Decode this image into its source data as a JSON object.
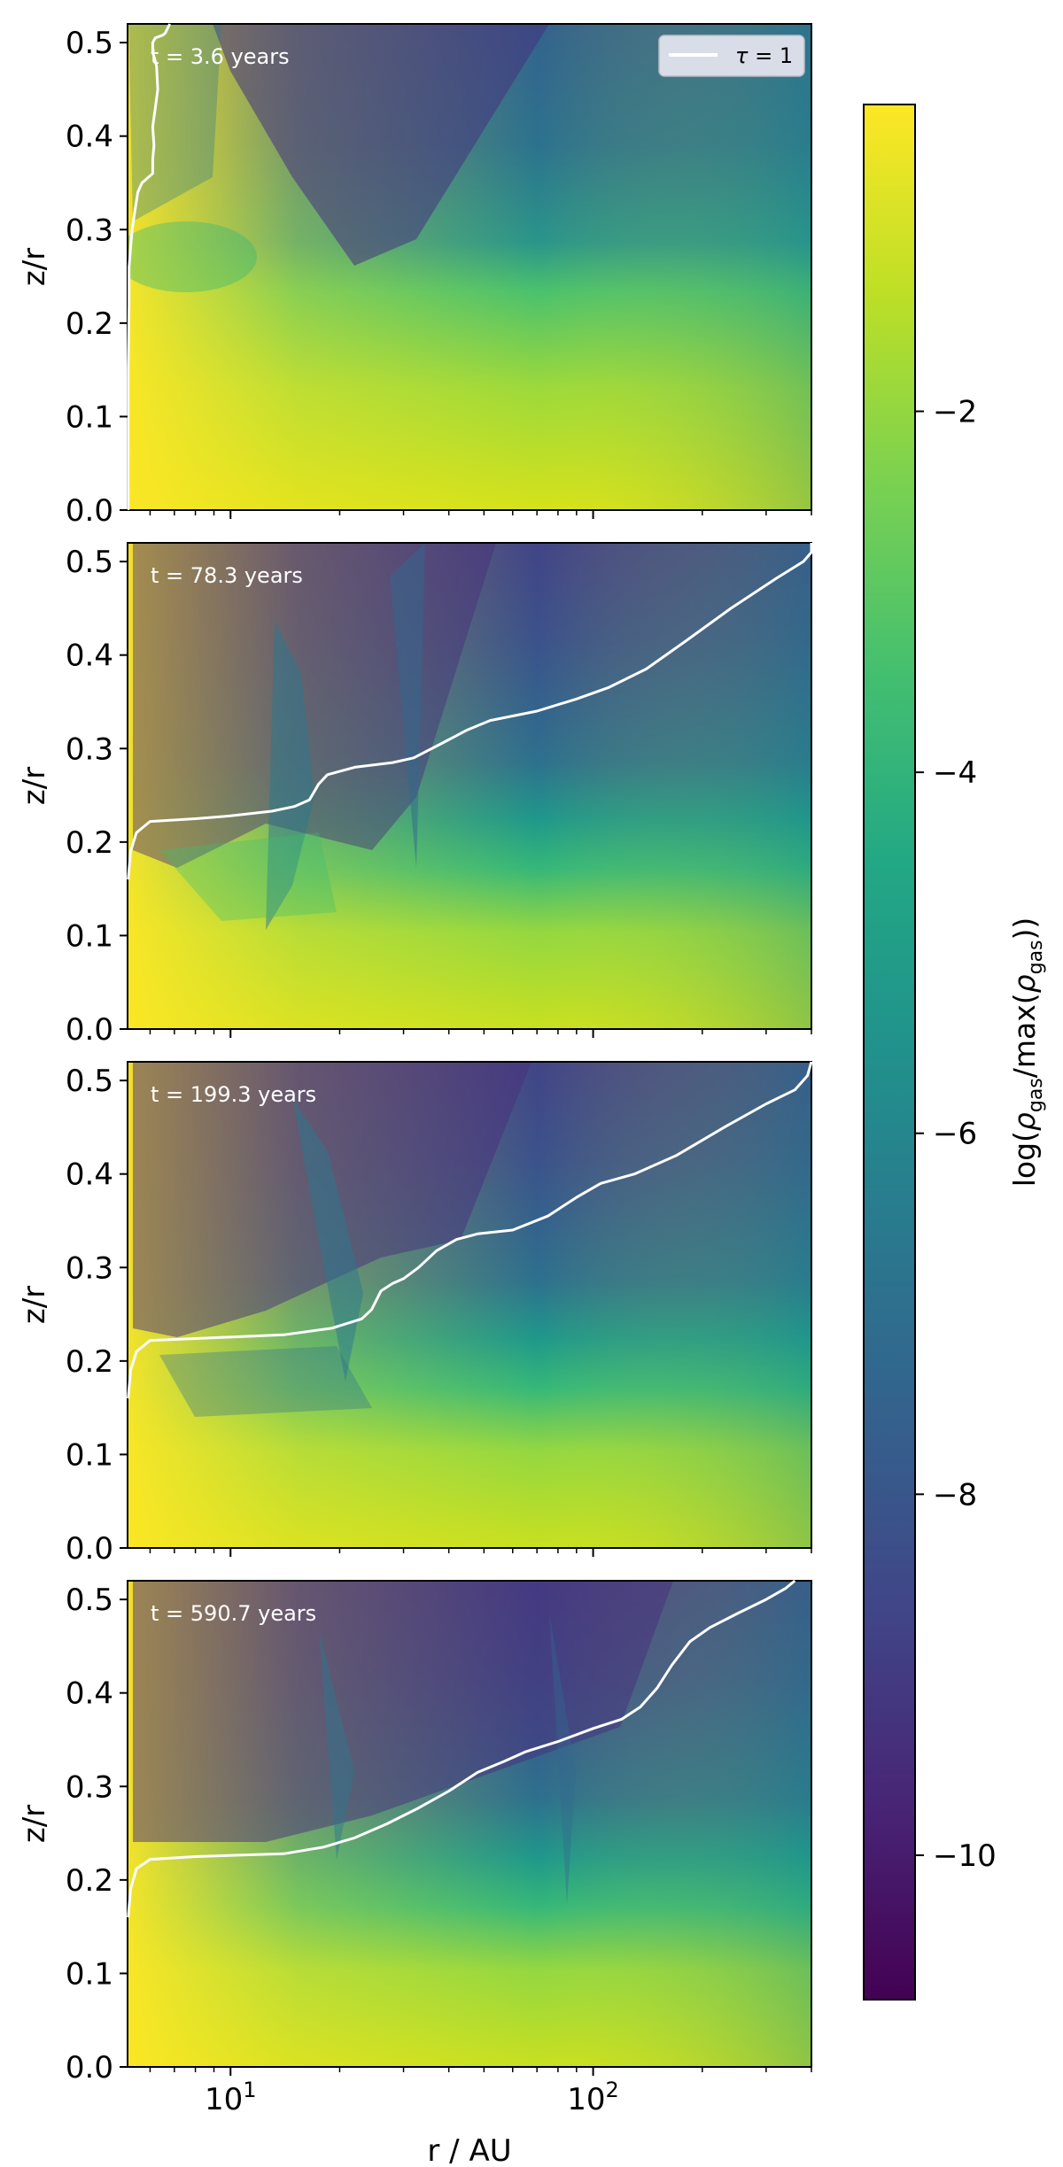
{
  "chart_data": {
    "type": "heatmap",
    "xlabel": "r / AU",
    "ylabel": "z/r",
    "xscale": "log",
    "xlim": [
      5.2,
      400
    ],
    "ylim": [
      0,
      0.52
    ],
    "x_tick_labels": [
      {
        "base": "10",
        "exp": "1",
        "value": 10
      },
      {
        "base": "10",
        "exp": "2",
        "value": 100
      }
    ],
    "y_ticks": [
      0.0,
      0.1,
      0.2,
      0.3,
      0.4,
      0.5
    ],
    "y_tick_labels": [
      "0.0",
      "0.1",
      "0.2",
      "0.3",
      "0.4",
      "0.5"
    ],
    "legend": {
      "label_tau": "τ",
      "label_rest": " = 1",
      "location": "top-right",
      "line_color": "#ffffff"
    },
    "colorbar": {
      "label": "log(ρgas/max(ρgas))",
      "label_parts": {
        "a": "log(",
        "rho1": "ρ",
        "sub1": "gas",
        "mid": "/max(",
        "rho2": "ρ",
        "sub2": "gas",
        "end": "))"
      },
      "range": [
        -10.8,
        -0.3
      ],
      "ticks": [
        -2,
        -4,
        -6,
        -8,
        -10
      ],
      "tick_labels": [
        "−2",
        "−4",
        "−6",
        "−8",
        "−10"
      ],
      "colormap": "viridis"
    },
    "panels": [
      {
        "time_label": "t = 3.6 years",
        "tau1_curve": [
          [
            6.8,
            0.52
          ],
          [
            6.6,
            0.51
          ],
          [
            6.5,
            0.508
          ],
          [
            6.2,
            0.505
          ],
          [
            6.1,
            0.5
          ],
          [
            6.1,
            0.49
          ],
          [
            6.25,
            0.475
          ],
          [
            6.3,
            0.45
          ],
          [
            6.2,
            0.43
          ],
          [
            6.1,
            0.41
          ],
          [
            6.15,
            0.39
          ],
          [
            6.1,
            0.375
          ],
          [
            6.1,
            0.36
          ],
          [
            5.7,
            0.35
          ],
          [
            5.55,
            0.34
          ],
          [
            5.45,
            0.32
          ],
          [
            5.35,
            0.3
          ],
          [
            5.3,
            0.28
          ],
          [
            5.25,
            0.26
          ],
          [
            5.25,
            0.22
          ],
          [
            5.22,
            0.15
          ],
          [
            5.22,
            0.05
          ],
          [
            5.22,
            0.0
          ]
        ]
      },
      {
        "time_label": "t = 78.3 years",
        "tau1_curve": [
          [
            5.22,
            0.16
          ],
          [
            5.3,
            0.19
          ],
          [
            5.5,
            0.21
          ],
          [
            6.0,
            0.222
          ],
          [
            8,
            0.225
          ],
          [
            10,
            0.228
          ],
          [
            13,
            0.233
          ],
          [
            15,
            0.238
          ],
          [
            16.5,
            0.245
          ],
          [
            17.5,
            0.262
          ],
          [
            18.5,
            0.272
          ],
          [
            22,
            0.28
          ],
          [
            28,
            0.285
          ],
          [
            32,
            0.29
          ],
          [
            38,
            0.305
          ],
          [
            45,
            0.32
          ],
          [
            52,
            0.33
          ],
          [
            70,
            0.34
          ],
          [
            90,
            0.353
          ],
          [
            110,
            0.365
          ],
          [
            140,
            0.385
          ],
          [
            180,
            0.415
          ],
          [
            240,
            0.45
          ],
          [
            320,
            0.482
          ],
          [
            380,
            0.5
          ],
          [
            400,
            0.51
          ],
          [
            400,
            0.52
          ]
        ]
      },
      {
        "time_label": "t = 199.3 years",
        "tau1_curve": [
          [
            5.22,
            0.16
          ],
          [
            5.3,
            0.19
          ],
          [
            5.5,
            0.21
          ],
          [
            6.0,
            0.222
          ],
          [
            8,
            0.224
          ],
          [
            14,
            0.228
          ],
          [
            19,
            0.235
          ],
          [
            23,
            0.245
          ],
          [
            24.5,
            0.255
          ],
          [
            26,
            0.275
          ],
          [
            28,
            0.283
          ],
          [
            30,
            0.288
          ],
          [
            33,
            0.3
          ],
          [
            37,
            0.318
          ],
          [
            42,
            0.33
          ],
          [
            48,
            0.336
          ],
          [
            60,
            0.34
          ],
          [
            75,
            0.355
          ],
          [
            90,
            0.375
          ],
          [
            105,
            0.39
          ],
          [
            130,
            0.4
          ],
          [
            170,
            0.42
          ],
          [
            230,
            0.45
          ],
          [
            300,
            0.475
          ],
          [
            360,
            0.49
          ],
          [
            390,
            0.505
          ],
          [
            400,
            0.52
          ]
        ]
      },
      {
        "time_label": "t = 590.7 years",
        "tau1_curve": [
          [
            5.22,
            0.16
          ],
          [
            5.3,
            0.19
          ],
          [
            5.5,
            0.212
          ],
          [
            6.0,
            0.222
          ],
          [
            8,
            0.225
          ],
          [
            14,
            0.228
          ],
          [
            18,
            0.235
          ],
          [
            22,
            0.245
          ],
          [
            27,
            0.26
          ],
          [
            33,
            0.277
          ],
          [
            40,
            0.295
          ],
          [
            48,
            0.315
          ],
          [
            57,
            0.327
          ],
          [
            65,
            0.337
          ],
          [
            80,
            0.348
          ],
          [
            100,
            0.362
          ],
          [
            120,
            0.372
          ],
          [
            135,
            0.385
          ],
          [
            150,
            0.405
          ],
          [
            165,
            0.43
          ],
          [
            185,
            0.455
          ],
          [
            210,
            0.47
          ],
          [
            250,
            0.485
          ],
          [
            300,
            0.5
          ],
          [
            340,
            0.512
          ],
          [
            360,
            0.52
          ]
        ]
      }
    ]
  }
}
